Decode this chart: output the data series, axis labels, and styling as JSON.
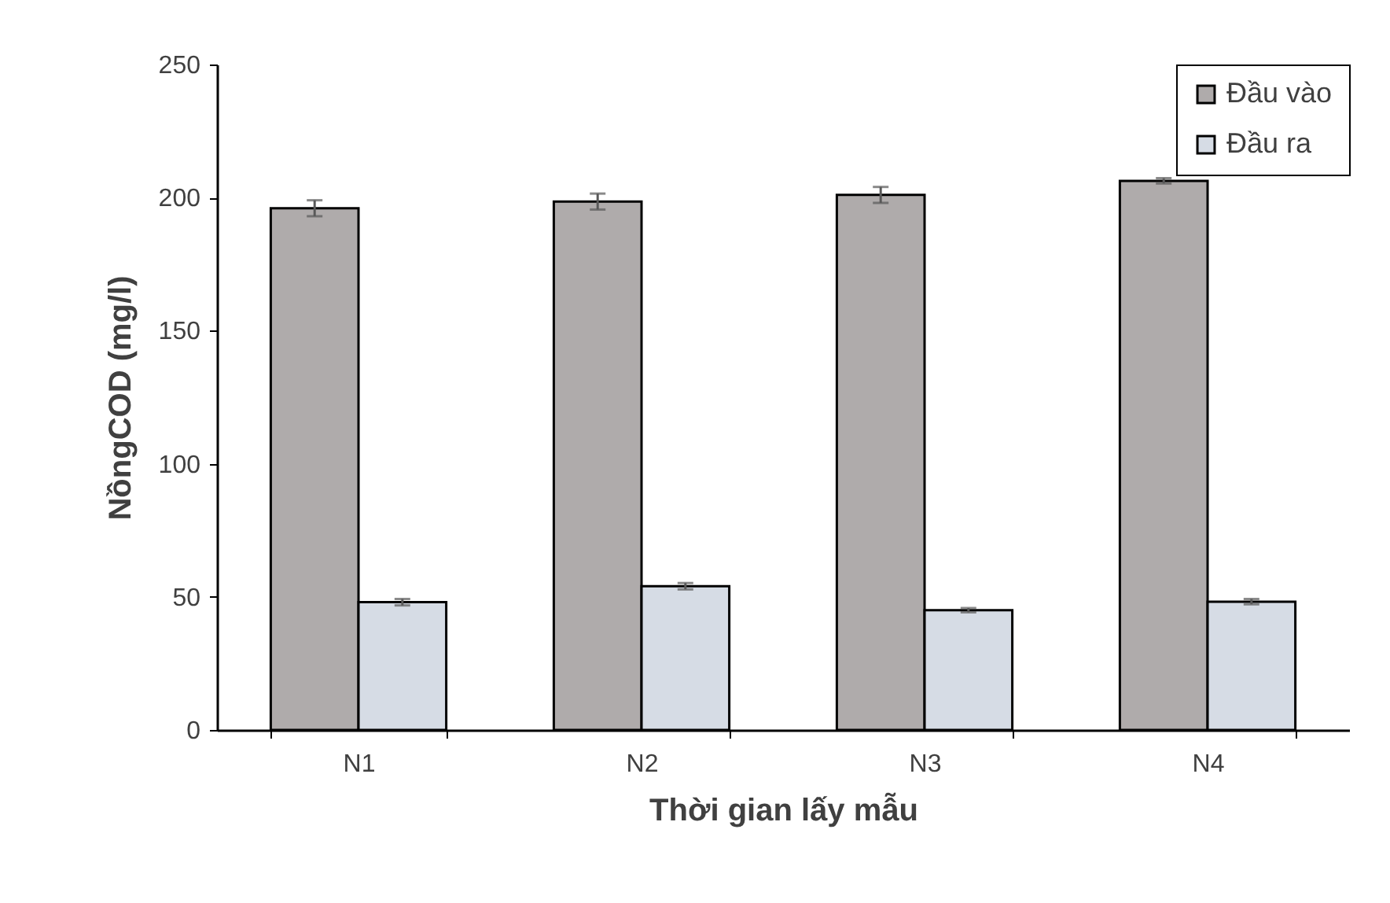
{
  "chart_data": {
    "type": "bar",
    "xlabel": "Thời gian lấy mẫu",
    "ylabel": "NồngCOD (mg/l)",
    "categories": [
      "N1",
      "N2",
      "N3",
      "N4"
    ],
    "series": [
      {
        "name": "Đầu vào",
        "color": "#afabab",
        "values": [
          196,
          198.5,
          201,
          206.3
        ],
        "errors": [
          3,
          3,
          3,
          1
        ]
      },
      {
        "name": "Đầu ra",
        "color": "#d6dce5",
        "values": [
          48,
          54,
          45,
          48.2
        ],
        "errors": [
          1.2,
          1.2,
          0.8,
          1
        ]
      }
    ],
    "ylim": [
      0,
      250
    ],
    "yticks": [
      0,
      50,
      100,
      150,
      200,
      250
    ],
    "grid": false,
    "legend": "top right"
  }
}
